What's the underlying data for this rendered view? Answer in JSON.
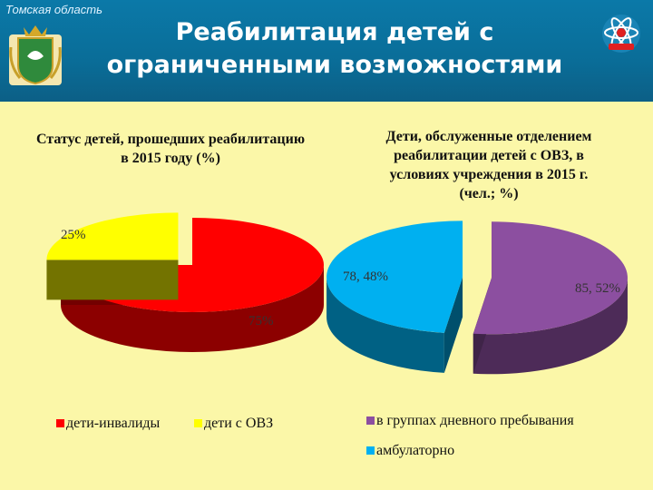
{
  "header": {
    "region": "Томская область",
    "title": "Реабилитация детей с ограниченными возможностями"
  },
  "chart_data": [
    {
      "type": "pie",
      "title": "Статус детей, прошедших реабилитацию в 2015 году (%)",
      "categories": [
        "дети-инвалиды",
        "дети с ОВЗ"
      ],
      "values": [
        75,
        25
      ],
      "data_labels": [
        "75%",
        "25%"
      ],
      "colors": [
        "#ff0000",
        "#ffff00"
      ],
      "legend_position": "bottom"
    },
    {
      "type": "pie",
      "title": "Дети, обслуженные отделением реабилитации детей с ОВЗ, в условиях учреждения в 2015 г. (чел.; %)",
      "categories": [
        "в группах дневного пребывания",
        "амбулаторно"
      ],
      "values": [
        85,
        78
      ],
      "percents": [
        52,
        48
      ],
      "data_labels": [
        "85, 52%",
        "78, 48%"
      ],
      "colors": [
        "#8c4fa0",
        "#00b0f0"
      ],
      "legend_position": "bottom"
    }
  ]
}
